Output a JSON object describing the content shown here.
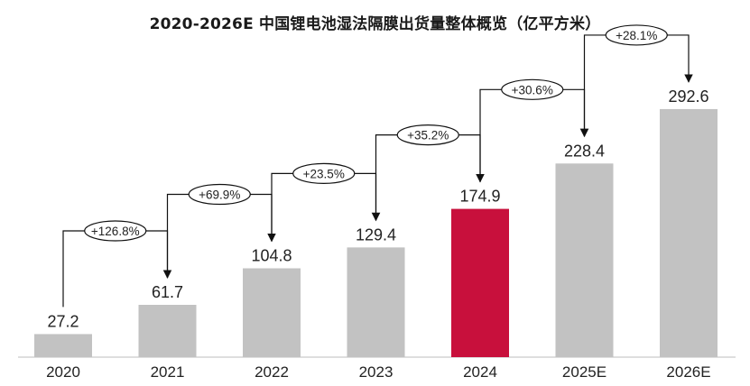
{
  "chart_data": {
    "type": "bar",
    "title": "2020-2026E 中国锂电池湿法隔膜出货量整体概览（亿平方米）",
    "categories": [
      "2020",
      "2021",
      "2022",
      "2023",
      "2024",
      "2025E",
      "2026E"
    ],
    "values": [
      27.2,
      61.7,
      104.8,
      129.4,
      174.9,
      228.4,
      292.6
    ],
    "value_labels": [
      "27.2",
      "61.7",
      "104.8",
      "129.4",
      "174.9",
      "228.4",
      "292.6"
    ],
    "growth_labels": [
      "+126.8%",
      "+69.9%",
      "+23.5%",
      "+35.2%",
      "+30.6%",
      "+28.1%"
    ],
    "ylim": [
      0,
      300
    ],
    "colors": {
      "bar": "#c2c2c2",
      "highlight": "#c8103c"
    },
    "highlight_index": 4,
    "grid": false
  }
}
